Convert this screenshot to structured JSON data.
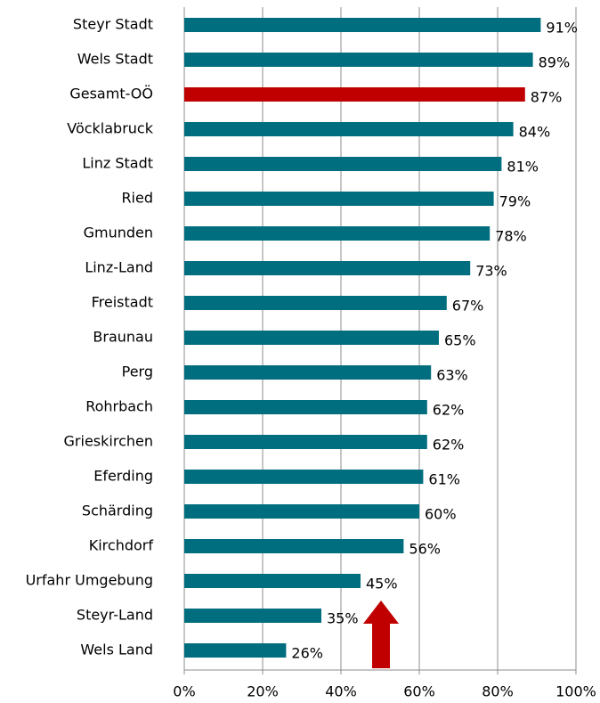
{
  "chart_data": {
    "type": "hbar",
    "categories": [
      "Steyr Stadt",
      "Wels Stadt",
      "Gesamt-OÖ",
      "Vöcklabruck",
      "Linz Stadt",
      "Ried",
      "Gmunden",
      "Linz-Land",
      "Freistadt",
      "Braunau",
      "Perg",
      "Rohrbach",
      "Grieskirchen",
      "Eferding",
      "Schärding",
      "Kirchdorf",
      "Urfahr Umgebung",
      "Steyr-Land",
      "Wels Land"
    ],
    "values": [
      91,
      89,
      87,
      84,
      81,
      79,
      78,
      73,
      67,
      65,
      63,
      62,
      62,
      61,
      60,
      56,
      45,
      35,
      26
    ],
    "value_labels": [
      "91%",
      "89%",
      "87%",
      "84%",
      "81%",
      "79%",
      "78%",
      "73%",
      "67%",
      "65%",
      "63%",
      "62%",
      "62%",
      "61%",
      "60%",
      "56%",
      "45%",
      "35%",
      "26%"
    ],
    "colors": [
      "#006e7e",
      "#006e7e",
      "#c00000",
      "#006e7e",
      "#006e7e",
      "#006e7e",
      "#006e7e",
      "#006e7e",
      "#006e7e",
      "#006e7e",
      "#006e7e",
      "#006e7e",
      "#006e7e",
      "#006e7e",
      "#006e7e",
      "#006e7e",
      "#006e7e",
      "#006e7e",
      "#006e7e"
    ],
    "xlim": [
      0,
      100
    ],
    "xticks": [
      {
        "value": 0,
        "label": "0%"
      },
      {
        "value": 20,
        "label": "20%"
      },
      {
        "value": 40,
        "label": "40%"
      },
      {
        "value": 60,
        "label": "60%"
      },
      {
        "value": 80,
        "label": "80%"
      },
      {
        "value": 100,
        "label": "100%"
      }
    ],
    "grid": true
  }
}
